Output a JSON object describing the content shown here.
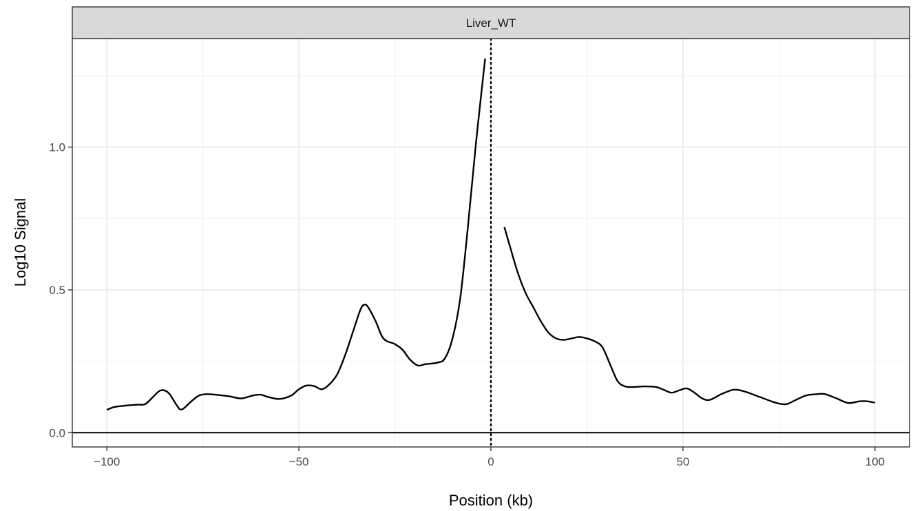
{
  "chart_data": {
    "type": "line",
    "panel_title": "Liver_WT",
    "xlabel": "Position (kb)",
    "ylabel": "Log10 Signal",
    "xlim": [
      -109,
      109
    ],
    "ylim": [
      -0.05,
      1.38
    ],
    "x_ticks": [
      -100,
      -50,
      0,
      50,
      100
    ],
    "x_tick_labels": [
      "−100",
      "−50",
      "0",
      "50",
      "100"
    ],
    "y_ticks": [
      0.0,
      0.5,
      1.0
    ],
    "y_tick_labels": [
      "0.0",
      "0.5",
      "1.0"
    ],
    "grid": true,
    "reference_lines": {
      "vertical_dotted_at_x": 0,
      "horizontal_solid_at_y": 0
    },
    "series": [
      {
        "color": "#000000",
        "segments": [
          {
            "x": [
              -100,
              -98,
              -95,
              -92,
              -90,
              -88,
              -86,
              -84,
              -82,
              -81,
              -80,
              -78,
              -76,
              -74,
              -71,
              -68,
              -65,
              -62,
              -60,
              -58,
              -55,
              -52,
              -50,
              -48,
              -46,
              -44,
              -42,
              -40,
              -38,
              -36,
              -34,
              -33,
              -32,
              -30,
              -28,
              -25,
              -23,
              -21,
              -19,
              -17,
              -14,
              -12,
              -10,
              -8,
              -6,
              -4,
              -2,
              -1.5
            ],
            "y": [
              0.08,
              0.09,
              0.095,
              0.098,
              0.1,
              0.125,
              0.148,
              0.14,
              0.1,
              0.082,
              0.085,
              0.11,
              0.13,
              0.135,
              0.132,
              0.127,
              0.12,
              0.13,
              0.133,
              0.125,
              0.118,
              0.13,
              0.152,
              0.165,
              0.163,
              0.152,
              0.17,
              0.205,
              0.27,
              0.35,
              0.43,
              0.448,
              0.44,
              0.39,
              0.33,
              0.31,
              0.29,
              0.255,
              0.235,
              0.24,
              0.245,
              0.26,
              0.33,
              0.47,
              0.72,
              1.0,
              1.25,
              1.31
            ]
          },
          {
            "x": [
              3.5,
              5,
              7,
              9,
              11,
              13,
              15,
              17,
              19,
              21,
              23,
              25,
              27,
              29,
              31,
              33,
              35,
              37,
              40,
              43,
              45,
              47,
              49,
              51,
              53,
              55,
              57,
              60,
              63,
              65,
              67,
              70,
              73,
              75,
              77,
              79,
              82,
              85,
              87,
              90,
              93,
              96,
              98,
              100
            ],
            "y": [
              0.72,
              0.65,
              0.56,
              0.49,
              0.44,
              0.39,
              0.35,
              0.33,
              0.325,
              0.33,
              0.335,
              0.33,
              0.32,
              0.3,
              0.24,
              0.18,
              0.162,
              0.16,
              0.162,
              0.16,
              0.15,
              0.14,
              0.148,
              0.155,
              0.14,
              0.12,
              0.115,
              0.135,
              0.15,
              0.148,
              0.14,
              0.125,
              0.11,
              0.102,
              0.1,
              0.112,
              0.13,
              0.135,
              0.135,
              0.12,
              0.104,
              0.11,
              0.11,
              0.105
            ]
          }
        ]
      }
    ]
  }
}
